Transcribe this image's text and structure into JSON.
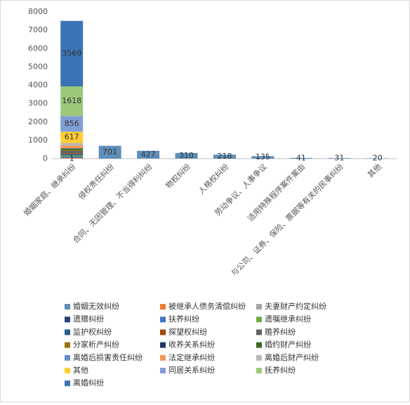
{
  "chart_data": {
    "type": "stacked-bar",
    "categories": [
      "婚姻家庭、继承纠纷",
      "侵权责任纠纷",
      "合同、无因管理、不当得利纠纷",
      "物权纠纷",
      "人格权纠纷",
      "劳动争议、人事争议",
      "适用特殊程序案件案由",
      "与公司、证券、保险、票据等有关的民事纠纷",
      "其他"
    ],
    "series": [
      {
        "name": "婚姻无效纠纷",
        "color": "#5f8fba",
        "data_labels": true,
        "values": [
          1,
          701,
          427,
          310,
          218,
          135,
          41,
          31,
          20
        ]
      },
      {
        "name": "被继承人债务清偿纠纷",
        "color": "#ed7d31",
        "values": [
          20,
          null,
          null,
          null,
          null,
          null,
          null,
          null,
          null
        ]
      },
      {
        "name": "夫妻财产约定纠纷",
        "color": "#a5a5a5",
        "values": [
          30,
          null,
          null,
          null,
          null,
          null,
          null,
          null,
          null
        ]
      },
      {
        "name": "遗赠纠纷",
        "color": "#264478",
        "values": [
          25,
          null,
          null,
          null,
          null,
          null,
          null,
          null,
          null
        ]
      },
      {
        "name": "扶养纠纷",
        "color": "#4472c4",
        "values": [
          40,
          null,
          null,
          null,
          null,
          null,
          null,
          null,
          null
        ]
      },
      {
        "name": "遗嘱继承纠纷",
        "color": "#70ad47",
        "values": [
          60,
          null,
          null,
          null,
          null,
          null,
          null,
          null,
          null
        ]
      },
      {
        "name": "监护权纠纷",
        "color": "#255e91",
        "values": [
          80,
          null,
          null,
          null,
          null,
          null,
          null,
          null,
          null
        ]
      },
      {
        "name": "探望权纠纷",
        "color": "#9e480e",
        "values": [
          45,
          null,
          null,
          null,
          null,
          null,
          null,
          null,
          null
        ]
      },
      {
        "name": "赡养纠纷",
        "color": "#636363",
        "values": [
          120,
          null,
          null,
          null,
          null,
          null,
          null,
          null,
          null
        ]
      },
      {
        "name": "分家析产纠纷",
        "color": "#997300",
        "values": [
          35,
          null,
          null,
          null,
          null,
          null,
          null,
          null,
          null
        ]
      },
      {
        "name": "收养关系纠纷",
        "color": "#1f3864",
        "values": [
          15,
          null,
          null,
          null,
          null,
          null,
          null,
          null,
          null
        ]
      },
      {
        "name": "婚约财产纠纷",
        "color": "#43682b",
        "values": [
          90,
          null,
          null,
          null,
          null,
          null,
          null,
          null,
          null
        ]
      },
      {
        "name": "离婚后损害责任纠纷",
        "color": "#698ed0",
        "values": [
          10,
          null,
          null,
          null,
          null,
          null,
          null,
          null,
          null
        ]
      },
      {
        "name": "法定继承纠纷",
        "color": "#f1975a",
        "values": [
          150,
          null,
          null,
          null,
          null,
          null,
          null,
          null,
          null
        ]
      },
      {
        "name": "离婚后财产纠纷",
        "color": "#b7b7b7",
        "values": [
          130,
          null,
          null,
          null,
          null,
          null,
          null,
          null,
          null
        ]
      },
      {
        "name": "其他",
        "color": "#ffcd33",
        "data_labels": true,
        "values": [
          617,
          null,
          null,
          null,
          null,
          null,
          null,
          null,
          null
        ]
      },
      {
        "name": "同居关系纠纷",
        "color": "#7f9fd4",
        "data_labels": true,
        "values": [
          856,
          null,
          null,
          null,
          null,
          null,
          null,
          null,
          null
        ]
      },
      {
        "name": "抚养纠纷",
        "color": "#9bc87a",
        "data_labels": true,
        "values": [
          1618,
          null,
          null,
          null,
          null,
          null,
          null,
          null,
          null
        ]
      },
      {
        "name": "离婚纠纷",
        "color": "#3a74b5",
        "data_labels": true,
        "values": [
          3569,
          null,
          null,
          null,
          null,
          null,
          null,
          null,
          null
        ]
      }
    ],
    "ylim": [
      0,
      8000
    ],
    "yticks": [
      0,
      1000,
      2000,
      3000,
      4000,
      5000,
      6000,
      7000,
      8000
    ],
    "grid": false
  }
}
